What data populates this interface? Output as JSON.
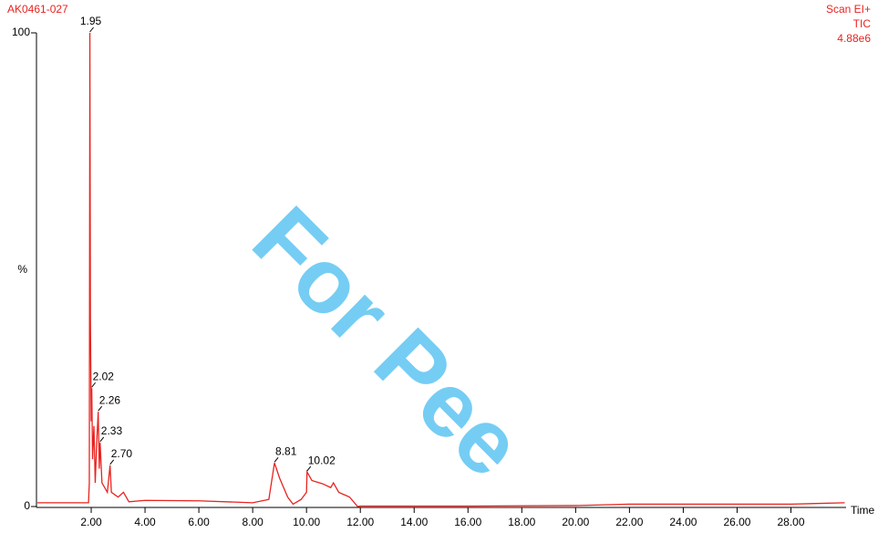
{
  "chart_data": {
    "type": "line",
    "title": "AK0461-027",
    "info_lines": [
      "Scan EI+",
      "TIC",
      "4.88e6"
    ],
    "x_label": "Time",
    "y_label": "%",
    "watermark": "For Pee",
    "xlim": [
      0,
      30.05
    ],
    "ylim": [
      0,
      100
    ],
    "xticks": [
      {
        "value": 2,
        "label": "2.00"
      },
      {
        "value": 4,
        "label": "4.00"
      },
      {
        "value": 6,
        "label": "6.00"
      },
      {
        "value": 8,
        "label": "8.00"
      },
      {
        "value": 10,
        "label": "10.00"
      },
      {
        "value": 12,
        "label": "12.00"
      },
      {
        "value": 14,
        "label": "14.00"
      },
      {
        "value": 16,
        "label": "16.00"
      },
      {
        "value": 18,
        "label": "18.00"
      },
      {
        "value": 20,
        "label": "20.00"
      },
      {
        "value": 22,
        "label": "22.00"
      },
      {
        "value": 24,
        "label": "24.00"
      },
      {
        "value": 26,
        "label": "26.00"
      },
      {
        "value": 28,
        "label": "28.00"
      }
    ],
    "yticks": [
      0,
      100
    ],
    "series": [
      {
        "name": "TIC",
        "color": "#e8231f",
        "x": [
          0,
          1,
          1.9,
          1.93,
          1.95,
          1.97,
          2.0,
          2.02,
          2.05,
          2.1,
          2.15,
          2.2,
          2.26,
          2.3,
          2.33,
          2.4,
          2.5,
          2.6,
          2.7,
          2.75,
          3.0,
          3.2,
          3.4,
          4,
          6,
          8,
          8.6,
          8.81,
          9.0,
          9.3,
          9.5,
          9.8,
          10.0,
          10.02,
          10.2,
          10.6,
          10.9,
          11.0,
          11.2,
          11.6,
          11.9,
          12,
          16,
          20,
          22,
          28,
          30
        ],
        "values": [
          0.8,
          0.8,
          0.8,
          5,
          100,
          40,
          18,
          25,
          10,
          17,
          5,
          13,
          20,
          8,
          13.5,
          5,
          4,
          3,
          8.7,
          3,
          2,
          3,
          1,
          1.3,
          1.2,
          0.8,
          1.5,
          9.2,
          6,
          2,
          0.5,
          1.5,
          3,
          7.3,
          5.5,
          4.8,
          4,
          5,
          3,
          2,
          0,
          0.1,
          0.1,
          0.2,
          0.5,
          0.5,
          0.8
        ]
      }
    ],
    "peak_labels": [
      {
        "label": "1.95",
        "x": 1.95,
        "y": 100
      },
      {
        "label": "2.02",
        "x": 2.02,
        "y": 25
      },
      {
        "label": "2.26",
        "x": 2.26,
        "y": 20
      },
      {
        "label": "2.33",
        "x": 2.33,
        "y": 13.5
      },
      {
        "label": "2.70",
        "x": 2.7,
        "y": 8.7
      },
      {
        "label": "8.81",
        "x": 8.81,
        "y": 9.2
      },
      {
        "label": "10.02",
        "x": 10.02,
        "y": 7.3
      }
    ]
  }
}
